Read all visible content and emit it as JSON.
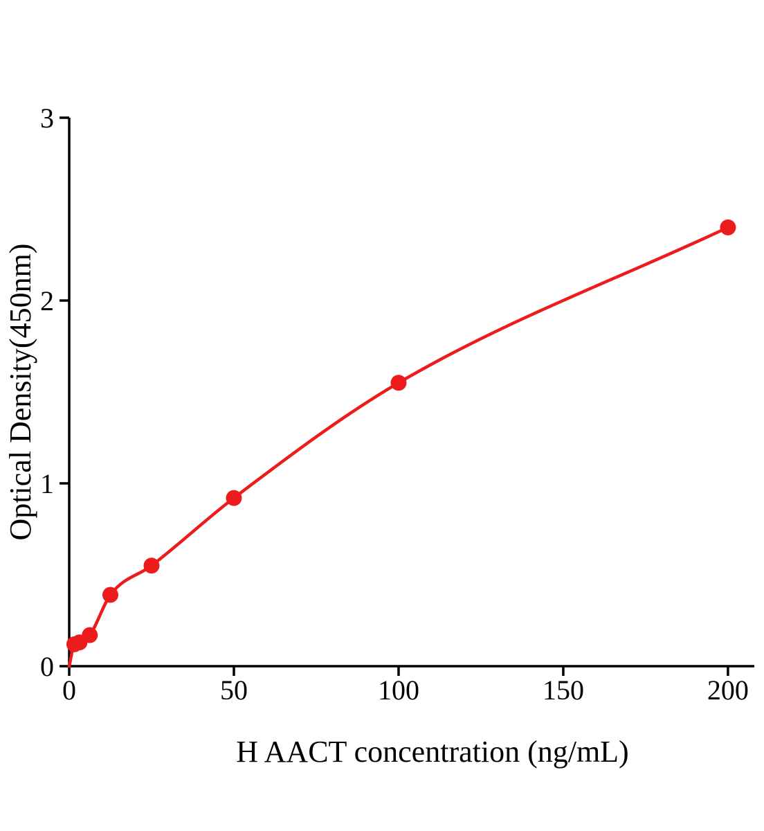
{
  "page": {
    "background": "#ffffff",
    "axis_color": "#000000"
  },
  "chart_data": {
    "type": "scatter",
    "title": "",
    "xlabel": "H AACT concentration (ng/mL)",
    "ylabel": "Optical Density(450nm)",
    "x": [
      1.5625,
      3.125,
      6.25,
      12.5,
      25,
      50,
      100,
      200
    ],
    "y": [
      0.12,
      0.13,
      0.17,
      0.39,
      0.55,
      0.92,
      1.55,
      2.4
    ],
    "curve_through_origin": true,
    "xlim": [
      0,
      208
    ],
    "ylim": [
      0,
      3
    ],
    "x_ticks": [
      0,
      50,
      100,
      150,
      200
    ],
    "y_ticks": [
      0,
      1,
      2,
      3
    ],
    "line_color": "#ed1c1c",
    "point_color": "#ed1c1c",
    "marker_radius": 11.5,
    "legend": "none",
    "grid": "off"
  }
}
